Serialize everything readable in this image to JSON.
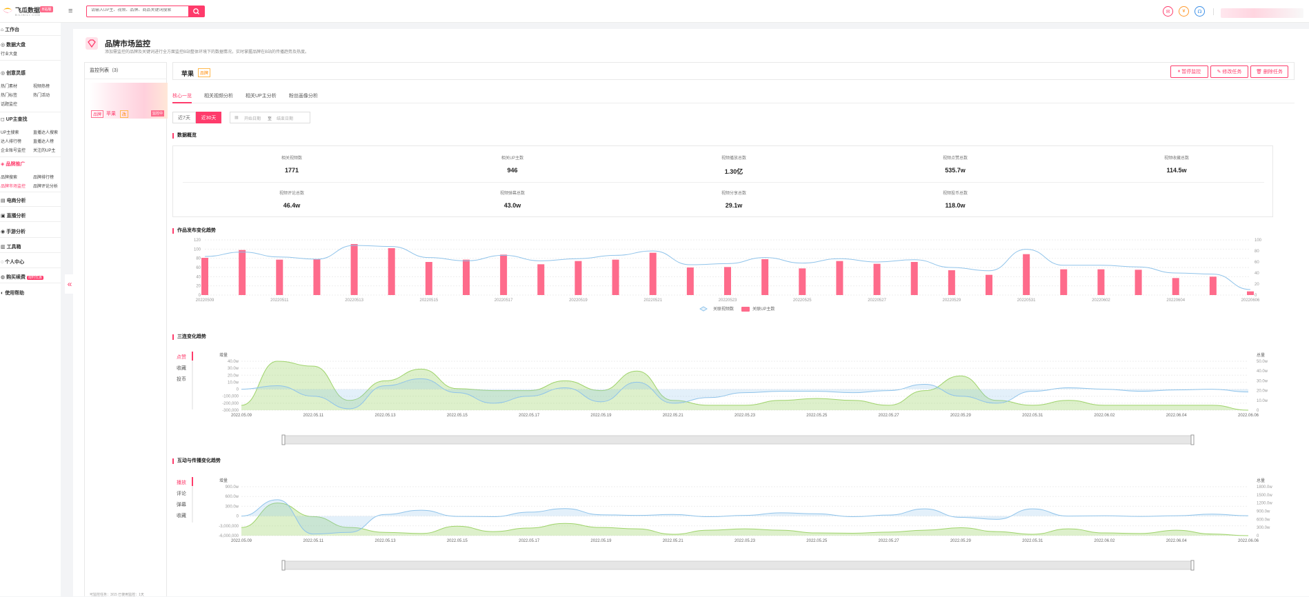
{
  "header": {
    "logo_text": "飞瓜数据",
    "logo_sub": "BILIBILI.COM",
    "logo_badge": "B站版",
    "search_placeholder": "请输入UP主、视频、品牌、商品关键词搜索",
    "colors": {
      "accent": "#fe3b6b"
    }
  },
  "sidebar": {
    "groups": [
      {
        "label": "工作台",
        "items": []
      },
      {
        "label": "数据大盘",
        "items": [
          "行业大盘"
        ]
      },
      {
        "label": "创意灵感",
        "items": [
          "热门素材",
          "视频热榜",
          "热门标签",
          "热门活动",
          "话题监控"
        ]
      },
      {
        "label": "UP主查找",
        "items": [
          "UP主搜索",
          "直播达人搜索",
          "达人排行榜",
          "直播达人榜",
          "企业账号监控",
          "关注的UP主"
        ]
      },
      {
        "label": "品牌推广",
        "items": [
          "品牌搜索",
          "品牌排行榜",
          "品牌市场监控",
          "品牌评论分析"
        ]
      },
      {
        "label": "电商分析",
        "items": []
      },
      {
        "label": "直播分析",
        "items": []
      },
      {
        "label": "手游分析",
        "items": []
      },
      {
        "label": "工具箱",
        "items": []
      },
      {
        "label": "个人中心",
        "items": []
      },
      {
        "label": "购买续费",
        "items": [],
        "badge": "限时优惠"
      },
      {
        "label": "使用帮助",
        "items": []
      }
    ],
    "active_item": "品牌市场监控"
  },
  "page": {
    "title": "品牌市场监控",
    "desc": "添加需监控的品牌及关键词进行全方面监控B站整体环境下的数据情况，实时掌握品牌在B站的传播趋势及热度。"
  },
  "monitor_list": {
    "header": "监控列表（3）",
    "card": {
      "tag1": "品牌",
      "name": "苹果",
      "tag2": "改",
      "status": "监控中"
    },
    "footer": "可监控任务：3/15    已使用监控：1天"
  },
  "brand": {
    "name": "苹果",
    "tag": "品牌",
    "actions": [
      "暂停监控",
      "修改任务",
      "删除任务"
    ]
  },
  "tabs": [
    "核心一览",
    "相关视频分析",
    "相关UP主分析",
    "粉丝画像分析"
  ],
  "periods": [
    "近7天",
    "近30天"
  ],
  "date_range": {
    "start_placeholder": "开始日期",
    "sep": "至",
    "end_placeholder": "结束日期"
  },
  "overview": {
    "title": "数据概览",
    "row1": [
      {
        "label": "相关视频数",
        "value": "1771"
      },
      {
        "label": "相关UP主数",
        "value": "946"
      },
      {
        "label": "视频播放总数",
        "value": "1.30亿"
      },
      {
        "label": "视频点赞总数",
        "value": "535.7w"
      },
      {
        "label": "视频收藏总数",
        "value": "114.5w"
      }
    ],
    "row2": [
      {
        "label": "视频评论总数",
        "value": "46.4w"
      },
      {
        "label": "视频弹幕总数",
        "value": "43.0w"
      },
      {
        "label": "视频分享总数",
        "value": "29.1w"
      },
      {
        "label": "视频投币总数",
        "value": "118.0w"
      }
    ]
  },
  "chart1_title": "作品发布变化趋势",
  "chart2_title": "三连变化趋势",
  "chart2_tabs": [
    "点赞",
    "收藏",
    "投币"
  ],
  "chart3_title": "互动与传播变化趋势",
  "chart3_tabs": [
    "播放",
    "评论",
    "弹幕",
    "收藏"
  ],
  "chart_data": [
    {
      "type": "bar",
      "title": "作品发布变化趋势",
      "x": [
        "20220509",
        "20220510",
        "20220511",
        "20220512",
        "20220513",
        "20220514",
        "20220515",
        "20220516",
        "20220517",
        "20220518",
        "20220519",
        "20220520",
        "20220521",
        "20220522",
        "20220523",
        "20220524",
        "20220525",
        "20220526",
        "20220527",
        "20220528",
        "20220529",
        "20220530",
        "20220531",
        "20220601",
        "20220602",
        "20220603",
        "20220604",
        "20220605",
        "20220606"
      ],
      "x_tick_labels": [
        "20220509",
        "20220511",
        "20220513",
        "20220515",
        "20220517",
        "20220519",
        "20220521",
        "20220523",
        "20220525",
        "20220527",
        "20220529",
        "20220531",
        "20220602",
        "20220604",
        "20220606"
      ],
      "series": [
        {
          "name": "关联视频数",
          "kind": "line",
          "color": "#8fc3ea",
          "values": [
            70,
            78,
            69,
            65,
            90,
            88,
            68,
            62,
            72,
            62,
            66,
            72,
            80,
            55,
            57,
            68,
            58,
            66,
            60,
            64,
            50,
            44,
            83,
            54,
            54,
            51,
            40,
            38,
            10
          ]
        },
        {
          "name": "关联UP主数",
          "kind": "bar",
          "color": "#fe6b8b",
          "values": [
            81,
            98,
            77,
            78,
            111,
            102,
            72,
            77,
            88,
            67,
            74,
            77,
            92,
            60,
            61,
            78,
            58,
            74,
            68,
            72,
            54,
            44,
            89,
            56,
            56,
            55,
            37,
            40,
            8
          ]
        }
      ],
      "yleft": {
        "min": 0,
        "max": 120,
        "ticks": [
          0,
          20,
          40,
          60,
          80,
          100,
          120
        ]
      },
      "yright": {
        "min": 0,
        "max": 100,
        "ticks": [
          0,
          20,
          40,
          60,
          80,
          100
        ]
      }
    },
    {
      "type": "area",
      "title": "三连变化趋势",
      "x_tick_labels": [
        "2022.05.09",
        "2022.05.11",
        "2022.05.13",
        "2022.05.15",
        "2022.05.17",
        "2022.05.19",
        "2022.05.21",
        "2022.05.23",
        "2022.05.25",
        "2022.05.27",
        "2022.05.29",
        "2022.05.31",
        "2022.06.02",
        "2022.06.04",
        "2022.06.06"
      ],
      "yleft_label": "增量",
      "yleft_ticks": [
        "40.0w",
        "30.0w",
        "20.0w",
        "10.0w",
        "0",
        "-100,000",
        "-200,000",
        "-300,000"
      ],
      "yright_label": "总量",
      "yright_ticks": [
        "50.0w",
        "40.0w",
        "30.0w",
        "20.0w",
        "10.0w",
        "0"
      ],
      "series": [
        {
          "name": "增量",
          "color": "#8fc3ea",
          "values": [
            0,
            5,
            -10,
            -28,
            5,
            15,
            -5,
            -20,
            -10,
            2,
            -18,
            10,
            -20,
            -12,
            -5,
            -3,
            -3,
            -5,
            -2,
            7,
            -10,
            -20,
            -3,
            2,
            0,
            -3,
            -1,
            0,
            -4
          ]
        },
        {
          "name": "总量",
          "color": "#9ed36a",
          "values": [
            5,
            50,
            45,
            10,
            30,
            42,
            22,
            20,
            20,
            30,
            20,
            40,
            10,
            5,
            5,
            10,
            12,
            10,
            5,
            20,
            35,
            10,
            5,
            10,
            5,
            5,
            5,
            5,
            0
          ]
        }
      ]
    },
    {
      "type": "area",
      "title": "互动与传播变化趋势",
      "x_tick_labels": [
        "2022.05.09",
        "2022.05.11",
        "2022.05.13",
        "2022.05.15",
        "2022.05.17",
        "2022.05.19",
        "2022.05.21",
        "2022.05.23",
        "2022.05.25",
        "2022.05.27",
        "2022.05.29",
        "2022.05.31",
        "2022.06.02",
        "2022.06.04",
        "2022.06.06"
      ],
      "yleft_label": "增量",
      "yleft_ticks": [
        "900.0w",
        "600.0w",
        "300.0w",
        "0",
        "-3,000,000",
        "-6,000,000"
      ],
      "yright_label": "总量",
      "yright_ticks": [
        "1800.0w",
        "1500.0w",
        "1200.0w",
        "900.0w",
        "600.0w",
        "300.0w",
        "0"
      ],
      "series": [
        {
          "name": "增量",
          "color": "#8fc3ea",
          "values": [
            0,
            500,
            -550,
            -500,
            50,
            180,
            -10,
            -20,
            120,
            230,
            40,
            20,
            50,
            -20,
            20,
            100,
            70,
            -20,
            30,
            220,
            -40,
            -100,
            220,
            0,
            10,
            -10,
            10,
            60,
            10
          ]
        },
        {
          "name": "总量",
          "color": "#9ed36a",
          "values": [
            300,
            1200,
            700,
            300,
            120,
            80,
            350,
            150,
            280,
            450,
            300,
            250,
            50,
            200,
            250,
            200,
            100,
            90,
            130,
            200,
            290,
            150,
            50,
            250,
            100,
            80,
            200,
            60,
            0
          ]
        }
      ]
    }
  ]
}
